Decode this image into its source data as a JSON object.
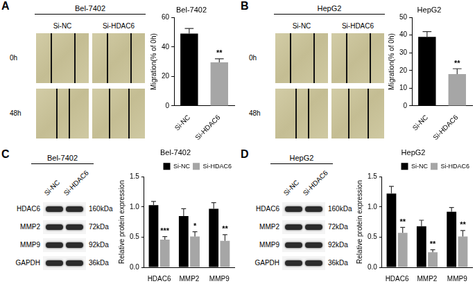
{
  "chart_data": [
    {
      "type": "bar",
      "title": "Bel-7402",
      "y_label": "Migration(% of 0h)",
      "categories": [
        "Si-NC",
        "Si-HDAC6"
      ],
      "values": [
        49,
        29.5
      ],
      "errors": [
        3.5,
        2.5
      ],
      "colors": [
        "#000000",
        "#a6a6a6"
      ],
      "ylim": [
        0,
        60
      ],
      "yticks": [
        0,
        20,
        40,
        60
      ],
      "grid": false,
      "annotations": [
        {
          "category": "Si-HDAC6",
          "text": "**"
        }
      ]
    },
    {
      "type": "bar",
      "title": "HepG2",
      "y_label": "Migration(% of 0h)",
      "categories": [
        "Si-NC",
        "Si-HDAC6"
      ],
      "values": [
        39,
        18
      ],
      "errors": [
        3,
        3
      ],
      "colors": [
        "#000000",
        "#a6a6a6"
      ],
      "ylim": [
        0,
        50
      ],
      "yticks": [
        0,
        10,
        20,
        30,
        40,
        50
      ],
      "grid": false,
      "annotations": [
        {
          "category": "Si-HDAC6",
          "text": "**"
        }
      ]
    },
    {
      "type": "bar",
      "title": "Bel-7402",
      "y_label": "Relative protein expression",
      "categories": [
        "HDAC6",
        "MMP2",
        "MMP9"
      ],
      "series": [
        {
          "name": "Si-NC",
          "color": "#000000",
          "values": [
            1.03,
            0.85,
            0.97
          ],
          "errors": [
            0.06,
            0.12,
            0.1
          ]
        },
        {
          "name": "Si-HDAC6",
          "color": "#a6a6a6",
          "values": [
            0.46,
            0.51,
            0.44
          ],
          "errors": [
            0.05,
            0.08,
            0.1
          ]
        }
      ],
      "ylim": [
        0,
        1.5
      ],
      "yticks": [
        {
          "value": 0,
          "label": "0.0"
        },
        0.5,
        {
          "value": 1,
          "label": "1.0"
        },
        1.5
      ],
      "grid": false,
      "legend": "top-right",
      "annotations": [
        {
          "category": "HDAC6",
          "series": "Si-HDAC6",
          "text": "***"
        },
        {
          "category": "MMP2",
          "series": "Si-HDAC6",
          "text": "*"
        },
        {
          "category": "MMP9",
          "series": "Si-HDAC6",
          "text": "**"
        }
      ]
    },
    {
      "type": "bar",
      "title": "HepG2",
      "y_label": "Relative protein expression",
      "categories": [
        "HDAC6",
        "MMP2",
        "MMP9"
      ],
      "series": [
        {
          "name": "Si-NC",
          "color": "#000000",
          "values": [
            1.22,
            0.68,
            0.92
          ],
          "errors": [
            0.12,
            0.1,
            0.07
          ]
        },
        {
          "name": "Si-HDAC6",
          "color": "#a6a6a6",
          "values": [
            0.57,
            0.25,
            0.51
          ],
          "errors": [
            0.09,
            0.04,
            0.1
          ]
        }
      ],
      "ylim": [
        0,
        1.5
      ],
      "yticks": [
        {
          "value": 0,
          "label": "0.0"
        },
        0.5,
        {
          "value": 1,
          "label": "1.0"
        },
        1.5
      ],
      "grid": false,
      "legend": "top-right",
      "annotations": [
        {
          "category": "HDAC6",
          "series": "Si-HDAC6",
          "text": "**"
        },
        {
          "category": "MMP2",
          "series": "Si-HDAC6",
          "text": "**"
        },
        {
          "category": "MMP9",
          "series": "Si-HDAC6",
          "text": "**"
        }
      ]
    }
  ],
  "panels": [
    {
      "letter": "A",
      "cell_line": "Bel-7402",
      "columns": [
        "Si-NC",
        "Si-HDAC6"
      ],
      "rows": [
        "0h",
        "48h"
      ]
    },
    {
      "letter": "B",
      "cell_line": "HepG2",
      "columns": [
        "Si-NC",
        "Si-HDAC6"
      ],
      "rows": [
        "0h",
        "48h"
      ]
    },
    {
      "letter": "C",
      "cell_line": "Bel-7402",
      "columns": [
        "Si-NC",
        "Si-HDAC6"
      ],
      "bands": [
        {
          "protein": "HDAC6",
          "size": "160kDa"
        },
        {
          "protein": "MMP2",
          "size": "72kDa"
        },
        {
          "protein": "MMP9",
          "size": "92kDa"
        },
        {
          "protein": "GAPDH",
          "size": "36kDa"
        }
      ]
    },
    {
      "letter": "D",
      "cell_line": "HepG2",
      "columns": [
        "Si-NC",
        "Si-HDAC6"
      ],
      "bands": [
        {
          "protein": "HDAC6",
          "size": "160kDa"
        },
        {
          "protein": "MMP2",
          "size": "72kDa"
        },
        {
          "protein": "MMP9",
          "size": "92kDa"
        },
        {
          "protein": "GAPDH",
          "size": "36kDa"
        }
      ]
    }
  ]
}
